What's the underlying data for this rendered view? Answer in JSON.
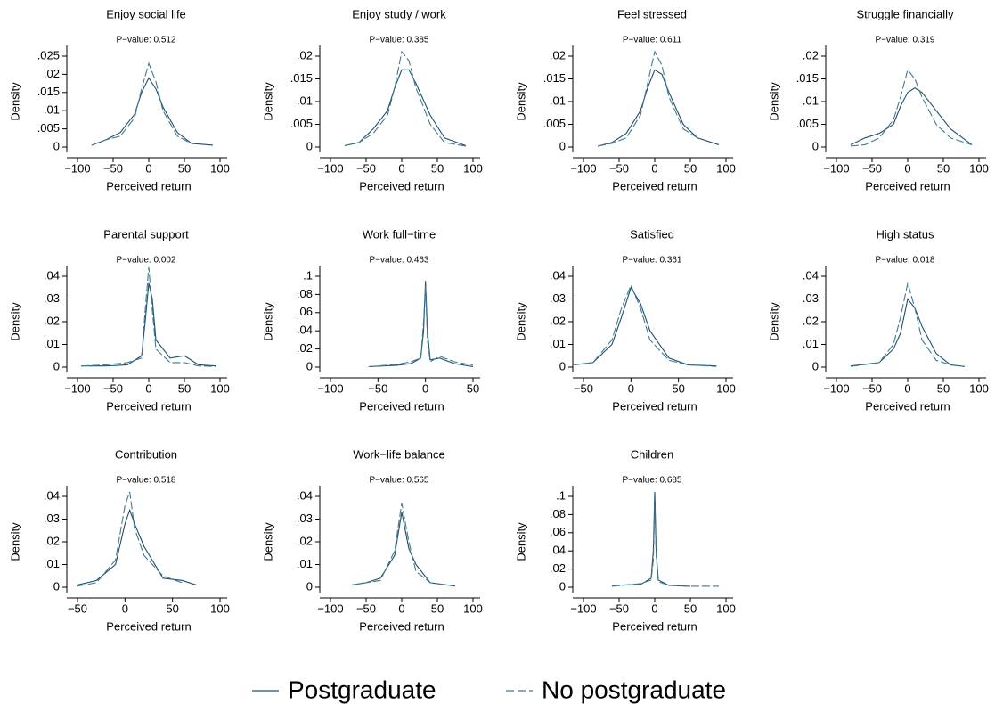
{
  "chart_data": [
    {
      "type": "line",
      "title": "Enjoy social life",
      "subtitle": "P−value:  0.512",
      "ylabel": "Density",
      "xlabel": "Perceived return",
      "xlim": [
        -100,
        100
      ],
      "xticks": [
        {
          "value": -100,
          "label": "−100"
        },
        {
          "value": -50,
          "label": "−50"
        },
        0,
        50,
        100
      ],
      "ylim": [
        0,
        0.025
      ],
      "yticks": [
        0,
        {
          "value": 0.005,
          "label": ".005"
        },
        {
          "value": 0.01,
          "label": ".01"
        },
        {
          "value": 0.015,
          "label": ".015"
        },
        {
          "value": 0.02,
          "label": ".02"
        },
        {
          "value": 0.025,
          "label": ".025"
        }
      ],
      "x": [
        -80,
        -60,
        -40,
        -20,
        -10,
        0,
        10,
        20,
        40,
        60,
        90
      ],
      "series": [
        {
          "name": "Postgraduate",
          "color": "#1f4e6e",
          "line_style": "solid",
          "values": [
            0.0005,
            0.002,
            0.004,
            0.009,
            0.015,
            0.019,
            0.016,
            0.011,
            0.004,
            0.001,
            0.0005
          ]
        },
        {
          "name": "No postgraduate",
          "color": "#3f7a8e",
          "line_style": "dashed",
          "values": [
            0.0005,
            0.002,
            0.003,
            0.008,
            0.016,
            0.023,
            0.018,
            0.01,
            0.003,
            0.001,
            null
          ]
        }
      ]
    },
    {
      "type": "line",
      "title": "Enjoy study / work",
      "subtitle": "P−value:  0.385",
      "ylabel": "Density",
      "xlabel": "Perceived return",
      "xlim": [
        -100,
        100
      ],
      "xticks": [
        {
          "value": -100,
          "label": "−100"
        },
        {
          "value": -50,
          "label": "−50"
        },
        0,
        50,
        100
      ],
      "ylim": [
        0,
        0.02
      ],
      "yticks": [
        0,
        {
          "value": 0.005,
          "label": ".005"
        },
        {
          "value": 0.01,
          "label": ".01"
        },
        {
          "value": 0.015,
          "label": ".015"
        },
        {
          "value": 0.02,
          "label": ".02"
        }
      ],
      "x": [
        -80,
        -60,
        -40,
        -20,
        -10,
        0,
        10,
        20,
        40,
        60,
        90
      ],
      "series": [
        {
          "name": "Postgraduate",
          "color": "#1f4e6e",
          "line_style": "solid",
          "values": [
            0.0003,
            0.001,
            0.004,
            0.008,
            0.013,
            0.017,
            0.017,
            0.014,
            0.007,
            0.002,
            0.0003
          ]
        },
        {
          "name": "No postgraduate",
          "color": "#3f7a8e",
          "line_style": "dashed",
          "values": [
            0.0003,
            0.001,
            0.003,
            0.007,
            0.013,
            0.021,
            0.019,
            0.013,
            0.005,
            0.001,
            0.0002
          ]
        }
      ]
    },
    {
      "type": "line",
      "title": "Feel stressed",
      "subtitle": "P−value:  0.611",
      "ylabel": "Density",
      "xlabel": "Perceived return",
      "xlim": [
        -100,
        100
      ],
      "xticks": [
        {
          "value": -100,
          "label": "−100"
        },
        {
          "value": -50,
          "label": "−50"
        },
        0,
        50,
        100
      ],
      "ylim": [
        0,
        0.02
      ],
      "yticks": [
        0,
        {
          "value": 0.005,
          "label": ".005"
        },
        {
          "value": 0.01,
          "label": ".01"
        },
        {
          "value": 0.015,
          "label": ".015"
        },
        {
          "value": 0.02,
          "label": ".02"
        }
      ],
      "x": [
        -80,
        -60,
        -40,
        -20,
        -10,
        0,
        10,
        20,
        40,
        60,
        90
      ],
      "series": [
        {
          "name": "Postgraduate",
          "color": "#1f4e6e",
          "line_style": "solid",
          "values": [
            0.0002,
            0.001,
            0.003,
            0.008,
            0.013,
            0.017,
            0.016,
            0.012,
            0.005,
            0.002,
            0.0005
          ]
        },
        {
          "name": "No postgraduate",
          "color": "#3f7a8e",
          "line_style": "dashed",
          "values": [
            0.0002,
            0.0008,
            0.002,
            0.007,
            0.014,
            0.021,
            0.018,
            0.011,
            0.004,
            0.002,
            null
          ]
        }
      ]
    },
    {
      "type": "line",
      "title": "Struggle financially",
      "subtitle": "P−value:  0.319",
      "ylabel": "Density",
      "xlabel": "Perceived return",
      "xlim": [
        -100,
        100
      ],
      "xticks": [
        {
          "value": -100,
          "label": "−100"
        },
        {
          "value": -50,
          "label": "−50"
        },
        0,
        50,
        100
      ],
      "ylim": [
        0,
        0.02
      ],
      "yticks": [
        0,
        {
          "value": 0.005,
          "label": ".005"
        },
        {
          "value": 0.01,
          "label": ".01"
        },
        {
          "value": 0.015,
          "label": ".015"
        },
        {
          "value": 0.02,
          "label": ".02"
        }
      ],
      "x": [
        -80,
        -60,
        -40,
        -20,
        -10,
        0,
        10,
        20,
        40,
        60,
        90
      ],
      "series": [
        {
          "name": "Postgraduate",
          "color": "#1f4e6e",
          "line_style": "solid",
          "values": [
            0.0005,
            0.002,
            0.003,
            0.005,
            0.009,
            0.012,
            0.013,
            0.012,
            0.008,
            0.004,
            0.0005
          ]
        },
        {
          "name": "No postgraduate",
          "color": "#3f7a8e",
          "line_style": "dashed",
          "values": [
            0.0002,
            0.0005,
            0.002,
            0.006,
            0.011,
            0.017,
            0.015,
            0.011,
            0.005,
            0.002,
            0.0005
          ]
        }
      ]
    },
    {
      "type": "line",
      "title": "Parental support",
      "subtitle": "P−value:  0.002",
      "ylabel": "Density",
      "xlabel": "Perceived return",
      "xlim": [
        -100,
        100
      ],
      "xticks": [
        {
          "value": -100,
          "label": "−100"
        },
        {
          "value": -50,
          "label": "−50"
        },
        0,
        50,
        100
      ],
      "ylim": [
        0,
        0.04
      ],
      "yticks": [
        0,
        {
          "value": 0.01,
          "label": ".01"
        },
        {
          "value": 0.02,
          "label": ".02"
        },
        {
          "value": 0.03,
          "label": ".03"
        },
        {
          "value": 0.04,
          "label": ".04"
        }
      ],
      "x": [
        -95,
        -60,
        -30,
        -10,
        -5,
        0,
        5,
        10,
        30,
        50,
        70,
        95
      ],
      "series": [
        {
          "name": "Postgraduate",
          "color": "#1f4e6e",
          "line_style": "solid",
          "values": [
            0.0005,
            0.0005,
            0.001,
            0.005,
            0.02,
            0.037,
            0.03,
            0.012,
            0.004,
            0.005,
            0.001,
            0.0005
          ]
        },
        {
          "name": "No postgraduate",
          "color": "#3f7a8e",
          "line_style": "dashed",
          "values": [
            0.0005,
            0.001,
            0.002,
            0.004,
            0.025,
            0.044,
            0.025,
            0.008,
            0.002,
            0.002,
            0.0005,
            0.0003
          ]
        }
      ]
    },
    {
      "type": "line",
      "title": "Work full−time",
      "subtitle": "P−value:  0.463",
      "ylabel": "Density",
      "xlabel": "Perceived return",
      "xlim": [
        -100,
        50
      ],
      "xticks": [
        {
          "value": -100,
          "label": "−100"
        },
        {
          "value": -50,
          "label": "−50"
        },
        0,
        50
      ],
      "ylim": [
        0,
        0.1
      ],
      "yticks": [
        0,
        {
          "value": 0.02,
          "label": ".02"
        },
        {
          "value": 0.04,
          "label": ".04"
        },
        {
          "value": 0.06,
          "label": ".06"
        },
        {
          "value": 0.08,
          "label": ".08"
        },
        {
          "value": 0.1,
          "label": ".1"
        }
      ],
      "x": [
        -60,
        -30,
        -15,
        -5,
        -2,
        0,
        2,
        5,
        15,
        30,
        50
      ],
      "series": [
        {
          "name": "Postgraduate",
          "color": "#1f4e6e",
          "line_style": "solid",
          "values": [
            0.0005,
            0.002,
            0.004,
            0.01,
            0.04,
            0.095,
            0.04,
            0.008,
            0.01,
            0.004,
            0.0005
          ]
        },
        {
          "name": "No postgraduate",
          "color": "#3f7a8e",
          "line_style": "dashed",
          "values": [
            0.0005,
            0.003,
            0.006,
            0.01,
            0.05,
            0.09,
            0.03,
            0.006,
            0.012,
            0.006,
            0.002
          ]
        }
      ]
    },
    {
      "type": "line",
      "title": "Satisfied",
      "subtitle": "P−value:  0.361",
      "ylabel": "Density",
      "xlabel": "Perceived return",
      "xlim": [
        -50,
        100
      ],
      "xticks": [
        {
          "value": -50,
          "label": "−50"
        },
        0,
        50,
        100
      ],
      "ylim": [
        0,
        0.04
      ],
      "yticks": [
        0,
        {
          "value": 0.01,
          "label": ".01"
        },
        {
          "value": 0.02,
          "label": ".02"
        },
        {
          "value": 0.03,
          "label": ".03"
        },
        {
          "value": 0.04,
          "label": ".04"
        }
      ],
      "x": [
        -60,
        -40,
        -20,
        -10,
        0,
        10,
        20,
        40,
        60,
        90
      ],
      "series": [
        {
          "name": "Postgraduate",
          "color": "#1f4e6e",
          "line_style": "solid",
          "values": [
            0.001,
            0.002,
            0.01,
            0.022,
            0.035,
            0.028,
            0.016,
            0.004,
            0.001,
            0.0005
          ]
        },
        {
          "name": "No postgraduate",
          "color": "#3f7a8e",
          "line_style": "dashed",
          "values": [
            0.001,
            0.002,
            0.012,
            0.026,
            0.036,
            0.026,
            0.012,
            0.003,
            0.001,
            0.0003
          ]
        }
      ]
    },
    {
      "type": "line",
      "title": "High status",
      "subtitle": "P−value:  0.018",
      "ylabel": "Density",
      "xlabel": "Perceived return",
      "xlim": [
        -100,
        100
      ],
      "xticks": [
        {
          "value": -100,
          "label": "−100"
        },
        {
          "value": -50,
          "label": "−50"
        },
        0,
        50,
        100
      ],
      "ylim": [
        0,
        0.04
      ],
      "yticks": [
        0,
        {
          "value": 0.01,
          "label": ".01"
        },
        {
          "value": 0.02,
          "label": ".02"
        },
        {
          "value": 0.03,
          "label": ".03"
        },
        {
          "value": 0.04,
          "label": ".04"
        }
      ],
      "x": [
        -80,
        -40,
        -20,
        -10,
        0,
        10,
        20,
        40,
        60,
        80
      ],
      "series": [
        {
          "name": "Postgraduate",
          "color": "#1f4e6e",
          "line_style": "solid",
          "values": [
            0.0005,
            0.002,
            0.008,
            0.015,
            0.03,
            0.026,
            0.018,
            0.006,
            0.001,
            0.0003
          ]
        },
        {
          "name": "No postgraduate",
          "color": "#3f7a8e",
          "line_style": "dashed",
          "values": [
            0.0003,
            0.002,
            0.01,
            0.022,
            0.037,
            0.026,
            0.012,
            0.003,
            0.001,
            0.0002
          ]
        }
      ]
    },
    {
      "type": "line",
      "title": "Contribution",
      "subtitle": "P−value:  0.518",
      "ylabel": "Density",
      "xlabel": "Perceived return",
      "xlim": [
        -50,
        100
      ],
      "xticks": [
        {
          "value": -50,
          "label": "−50"
        },
        0,
        50,
        100
      ],
      "ylim": [
        0,
        0.04
      ],
      "yticks": [
        0,
        {
          "value": 0.01,
          "label": ".01"
        },
        {
          "value": 0.02,
          "label": ".02"
        },
        {
          "value": 0.03,
          "label": ".03"
        },
        {
          "value": 0.04,
          "label": ".04"
        }
      ],
      "x": [
        -50,
        -30,
        -10,
        0,
        5,
        10,
        20,
        40,
        60,
        75
      ],
      "series": [
        {
          "name": "Postgraduate",
          "color": "#1f4e6e",
          "line_style": "solid",
          "values": [
            0.001,
            0.003,
            0.01,
            0.028,
            0.034,
            0.028,
            0.018,
            0.004,
            0.003,
            0.001
          ]
        },
        {
          "name": "No postgraduate",
          "color": "#3f7a8e",
          "line_style": "dashed",
          "values": [
            0.0005,
            0.002,
            0.012,
            0.036,
            0.042,
            0.026,
            0.014,
            0.005,
            0.002,
            null
          ]
        }
      ]
    },
    {
      "type": "line",
      "title": "Work−life balance",
      "subtitle": "P−value:  0.565",
      "ylabel": "Density",
      "xlabel": "Perceived return",
      "xlim": [
        -100,
        100
      ],
      "xticks": [
        {
          "value": -100,
          "label": "−100"
        },
        {
          "value": -50,
          "label": "−50"
        },
        0,
        50,
        100
      ],
      "ylim": [
        0,
        0.04
      ],
      "yticks": [
        0,
        {
          "value": 0.01,
          "label": ".01"
        },
        {
          "value": 0.02,
          "label": ".02"
        },
        {
          "value": 0.03,
          "label": ".03"
        },
        {
          "value": 0.04,
          "label": ".04"
        }
      ],
      "x": [
        -70,
        -50,
        -30,
        -10,
        0,
        10,
        20,
        40,
        75
      ],
      "series": [
        {
          "name": "Postgraduate",
          "color": "#1f4e6e",
          "line_style": "solid",
          "values": [
            0.001,
            0.002,
            0.004,
            0.014,
            0.033,
            0.017,
            0.01,
            0.002,
            0.0005
          ]
        },
        {
          "name": "No postgraduate",
          "color": "#3f7a8e",
          "line_style": "dashed",
          "values": [
            0.001,
            0.002,
            0.003,
            0.016,
            0.037,
            0.02,
            0.007,
            0.002,
            0.0005
          ]
        }
      ]
    },
    {
      "type": "line",
      "title": "Children",
      "subtitle": "P−value:  0.685",
      "ylabel": "Density",
      "xlabel": "Perceived return",
      "xlim": [
        -100,
        100
      ],
      "xticks": [
        {
          "value": -100,
          "label": "−100"
        },
        {
          "value": -50,
          "label": "−50"
        },
        0,
        50,
        100
      ],
      "ylim": [
        0,
        0.1
      ],
      "yticks": [
        0,
        {
          "value": 0.02,
          "label": ".02"
        },
        {
          "value": 0.04,
          "label": ".04"
        },
        {
          "value": 0.06,
          "label": ".06"
        },
        {
          "value": 0.08,
          "label": ".08"
        },
        {
          "value": 0.1,
          "label": ".1"
        }
      ],
      "x": [
        -60,
        -20,
        -5,
        -2,
        0,
        2,
        5,
        20,
        50,
        90
      ],
      "series": [
        {
          "name": "Postgraduate",
          "color": "#1f4e6e",
          "line_style": "solid",
          "values": [
            0.002,
            0.003,
            0.01,
            0.04,
            0.105,
            0.04,
            0.008,
            0.002,
            0.001,
            null
          ]
        },
        {
          "name": "No postgraduate",
          "color": "#3f7a8e",
          "line_style": "dashed",
          "values": [
            0.001,
            0.004,
            0.008,
            0.03,
            0.09,
            0.035,
            0.006,
            0.002,
            0.001,
            0.001
          ]
        }
      ]
    }
  ]
}
